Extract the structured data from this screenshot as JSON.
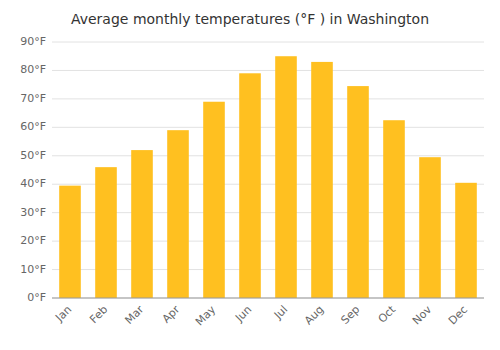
{
  "chart_data": {
    "type": "bar",
    "title": "Average monthly temperatures (°F ) in Washington",
    "categories": [
      "Jan",
      "Feb",
      "Mar",
      "Apr",
      "May",
      "Jun",
      "Jul",
      "Aug",
      "Sep",
      "Oct",
      "Nov",
      "Dec"
    ],
    "values": [
      39.5,
      46,
      52,
      59,
      69,
      79,
      85,
      83,
      74.5,
      62.5,
      49.5,
      40.5
    ],
    "color": "#FFC020",
    "ylim": [
      0,
      90
    ],
    "yticks": [
      {
        "value": 0,
        "label": "0°F"
      },
      {
        "value": 10,
        "label": "10°F"
      },
      {
        "value": 20,
        "label": "20°F"
      },
      {
        "value": 30,
        "label": "30°F"
      },
      {
        "value": 40,
        "label": "40°F"
      },
      {
        "value": 50,
        "label": "50°F"
      },
      {
        "value": 60,
        "label": "60°F"
      },
      {
        "value": 70,
        "label": "70°F"
      },
      {
        "value": 80,
        "label": "80°F"
      },
      {
        "value": 90,
        "label": "90°F"
      }
    ],
    "grid": true
  }
}
